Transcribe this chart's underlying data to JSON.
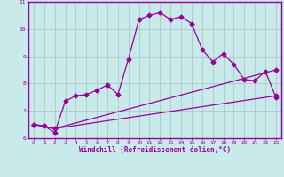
{
  "title": "",
  "xlabel": "Windchill (Refroidissement éolien,°C)",
  "ylabel": "",
  "xlim": [
    -0.5,
    23.5
  ],
  "ylim": [
    6,
    11
  ],
  "yticks": [
    6,
    7,
    8,
    9,
    10,
    11
  ],
  "xticks": [
    0,
    1,
    2,
    3,
    4,
    5,
    6,
    7,
    8,
    9,
    10,
    11,
    12,
    13,
    14,
    15,
    16,
    17,
    18,
    19,
    20,
    21,
    22,
    23
  ],
  "bg_color": "#c8eaea",
  "line_color": "#990099",
  "grid_color": "#b0c8c8",
  "line1_x": [
    0,
    1,
    2,
    3,
    4,
    5,
    6,
    7,
    8,
    9,
    10,
    11,
    12,
    13,
    14,
    15,
    16,
    17,
    18,
    19,
    20,
    21,
    22,
    23
  ],
  "line1_y": [
    6.5,
    6.45,
    6.2,
    7.35,
    7.55,
    7.6,
    7.75,
    7.95,
    7.6,
    8.9,
    10.35,
    10.5,
    10.6,
    10.35,
    10.45,
    10.2,
    9.25,
    8.8,
    9.1,
    8.7,
    8.15,
    8.1,
    8.45,
    7.5
  ],
  "line2_x": [
    0,
    2,
    23
  ],
  "line2_y": [
    6.5,
    6.35,
    8.5
  ],
  "line3_x": [
    0,
    2,
    23
  ],
  "line3_y": [
    6.5,
    6.35,
    7.55
  ]
}
